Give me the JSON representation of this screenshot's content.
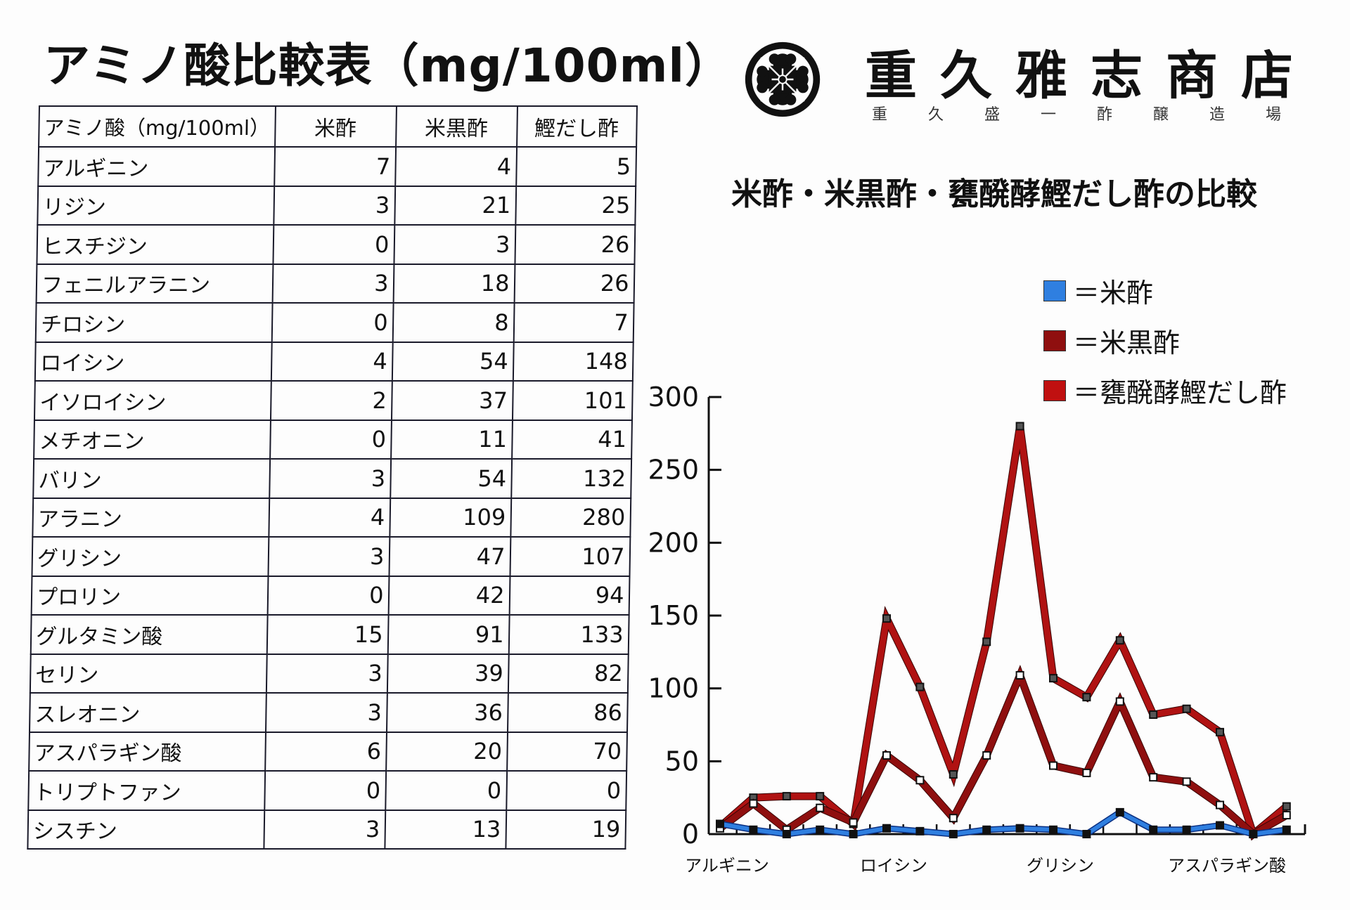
{
  "page_title": "アミノ酸比較表（mg/100ml）",
  "brand": {
    "name": "重久雅志商店",
    "subtitle": "重久盛一酢醸造場",
    "logo_icon": "family-crest-flower-icon"
  },
  "table": {
    "headers": [
      "アミノ酸（mg/100ml）",
      "米酢",
      "米黒酢",
      "鰹だし酢"
    ],
    "rows": [
      {
        "name": "アルギニン",
        "v": [
          "7",
          "4",
          "5"
        ]
      },
      {
        "name": "リジン",
        "v": [
          "3",
          "21",
          "25"
        ]
      },
      {
        "name": "ヒスチジン",
        "v": [
          "0",
          "3",
          "26"
        ]
      },
      {
        "name": "フェニルアラニン",
        "v": [
          "3",
          "18",
          "26"
        ]
      },
      {
        "name": "チロシン",
        "v": [
          "0",
          "8",
          "7"
        ]
      },
      {
        "name": "ロイシン",
        "v": [
          "4",
          "54",
          "148"
        ]
      },
      {
        "name": "イソロイシン",
        "v": [
          "2",
          "37",
          "101"
        ]
      },
      {
        "name": "メチオニン",
        "v": [
          "0",
          "11",
          "41"
        ]
      },
      {
        "name": "バリン",
        "v": [
          "3",
          "54",
          "132"
        ]
      },
      {
        "name": "アラニン",
        "v": [
          "4",
          "109",
          "280"
        ]
      },
      {
        "name": "グリシン",
        "v": [
          "3",
          "47",
          "107"
        ]
      },
      {
        "name": "プロリン",
        "v": [
          "0",
          "42",
          "94"
        ]
      },
      {
        "name": "グルタミン酸",
        "v": [
          "15",
          "91",
          "133"
        ]
      },
      {
        "name": "セリン",
        "v": [
          "3",
          "39",
          "82"
        ]
      },
      {
        "name": "スレオニン",
        "v": [
          "3",
          "36",
          "86"
        ]
      },
      {
        "name": "アスパラギン酸",
        "v": [
          "6",
          "20",
          "70"
        ]
      },
      {
        "name": "トリプトファン",
        "v": [
          "0",
          "0",
          "0"
        ]
      },
      {
        "name": "シスチン",
        "v": [
          "3",
          "13",
          "19"
        ]
      }
    ]
  },
  "chart_title": "米酢・米黒酢・甕醗酵鰹だし酢の比較",
  "legend": [
    {
      "label": "＝米酢",
      "color": "#2f7fe0"
    },
    {
      "label": "＝米黒酢",
      "color": "#8f0f0f"
    },
    {
      "label": "＝甕醗酵鰹だし酢",
      "color": "#c01010"
    }
  ],
  "chart_data": {
    "type": "line",
    "title": "米酢・米黒酢・甕醗酵鰹だし酢の比較",
    "xlabel": "",
    "ylabel": "",
    "ylim": [
      0,
      300
    ],
    "yticks": [
      0,
      50,
      100,
      150,
      200,
      250,
      300
    ],
    "grid": false,
    "legend_position": "top-right",
    "categories": [
      "アルギニン",
      "リジン",
      "ヒスチジン",
      "フェニルアラニン",
      "チロシン",
      "ロイシン",
      "イソロイシン",
      "メチオニン",
      "バリン",
      "アラニン",
      "グリシン",
      "プロリン",
      "グルタミン酸",
      "セリン",
      "スレオニン",
      "アスパラギン酸",
      "トリプトファン",
      "シスチン"
    ],
    "visible_xtick_labels": [
      "アルギニン",
      "ロイシン",
      "グリシン",
      "アスパラギン酸"
    ],
    "series": [
      {
        "name": "米酢",
        "color": "#2f7fe0",
        "values": [
          7,
          3,
          0,
          3,
          0,
          4,
          2,
          0,
          3,
          4,
          3,
          0,
          15,
          3,
          3,
          6,
          0,
          3
        ]
      },
      {
        "name": "米黒酢",
        "color": "#8f0f0f",
        "values": [
          4,
          21,
          3,
          18,
          8,
          54,
          37,
          11,
          54,
          109,
          47,
          42,
          91,
          39,
          36,
          20,
          0,
          13
        ]
      },
      {
        "name": "甕醗酵鰹だし酢",
        "color": "#b01212",
        "values": [
          5,
          25,
          26,
          26,
          7,
          148,
          101,
          41,
          132,
          280,
          107,
          94,
          133,
          82,
          86,
          70,
          0,
          19
        ]
      }
    ]
  }
}
